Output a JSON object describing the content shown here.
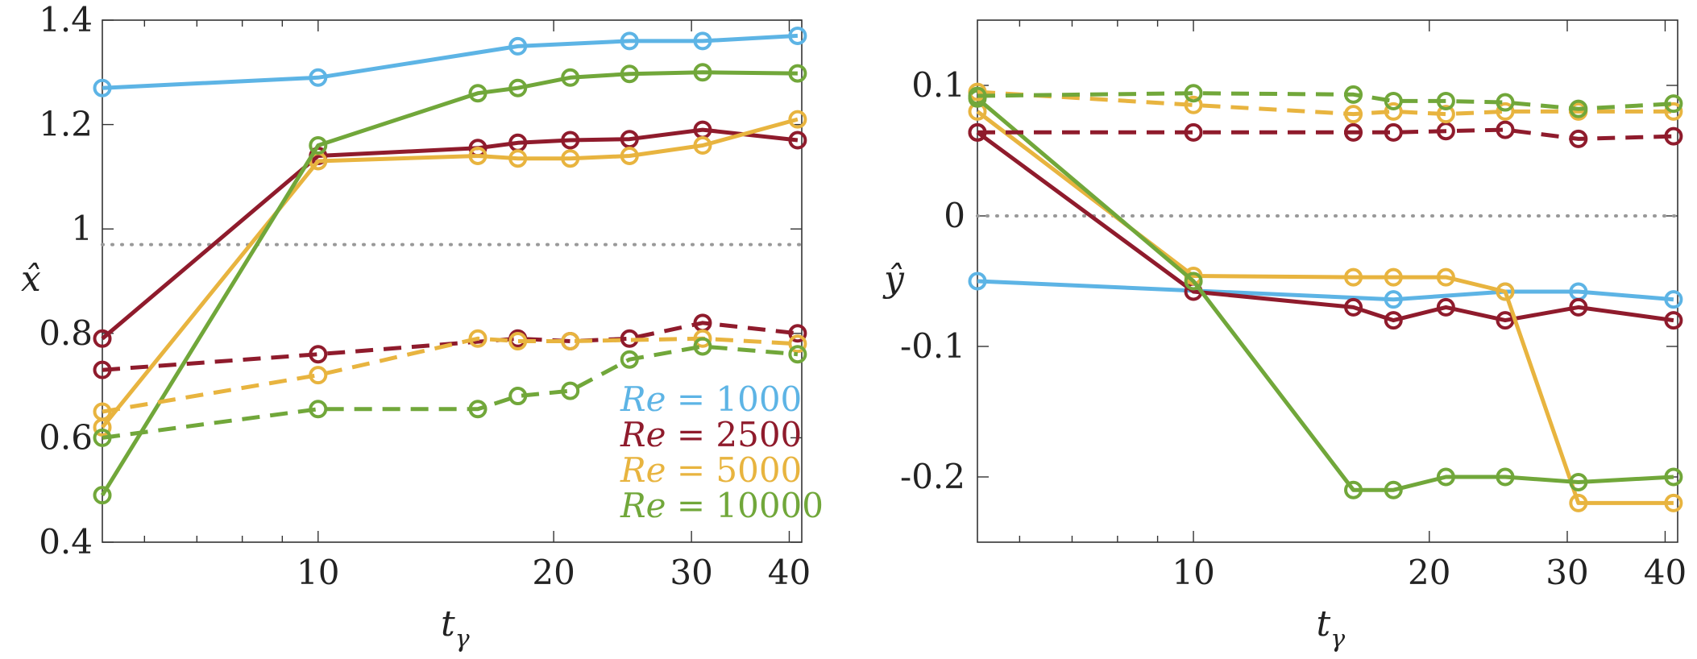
{
  "colors": {
    "re1000": "#5DB4E5",
    "re2500": "#8F1B2C",
    "re5000": "#E8B43F",
    "re10000": "#71A73A",
    "reference": "#999999",
    "axis": "#333333"
  },
  "chart_data": [
    {
      "type": "line",
      "id": "left",
      "ylabel": "x̂",
      "xlabel": "t",
      "xlabel_sub": "γ",
      "xscale": "log",
      "xlim": [
        5.3,
        41.5
      ],
      "ylim": [
        0.4,
        1.4
      ],
      "xticks": [
        10,
        20,
        30,
        40
      ],
      "xtick_labels": [
        "10",
        "20",
        "30",
        "40"
      ],
      "yticks": [
        0.4,
        0.6,
        0.8,
        1,
        1.2,
        1.4
      ],
      "ytick_labels": [
        "0.4",
        "0.6",
        "0.8",
        "1",
        "1.2",
        "1.4"
      ],
      "reference_line": 0.97,
      "legend": {
        "position": "bottom-right",
        "entries": [
          {
            "key": "re1000",
            "label_var": "Re",
            "label_eq": "= 1000"
          },
          {
            "key": "re2500",
            "label_var": "Re",
            "label_eq": "= 2500"
          },
          {
            "key": "re5000",
            "label_var": "Re",
            "label_eq": "= 5000"
          },
          {
            "key": "re10000",
            "label_var": "Re",
            "label_eq": "= 10000"
          }
        ]
      },
      "series": [
        {
          "name": "Re = 1000",
          "key": "re1000",
          "style": "solid",
          "x": [
            5.3,
            10,
            18,
            25,
            31,
            41
          ],
          "y": [
            1.27,
            1.29,
            1.35,
            1.36,
            1.36,
            1.37
          ]
        },
        {
          "name": "Re = 2500",
          "key": "re2500",
          "style": "solid",
          "x": [
            5.3,
            10,
            16,
            18,
            21,
            25,
            31,
            41
          ],
          "y": [
            0.79,
            1.14,
            1.155,
            1.165,
            1.17,
            1.172,
            1.19,
            1.17
          ]
        },
        {
          "name": "Re = 5000",
          "key": "re5000",
          "style": "solid",
          "x": [
            5.3,
            10,
            16,
            18,
            21,
            25,
            31,
            41
          ],
          "y": [
            0.62,
            1.13,
            1.14,
            1.135,
            1.135,
            1.14,
            1.16,
            1.21
          ]
        },
        {
          "name": "Re = 10000",
          "key": "re10000",
          "style": "solid",
          "x": [
            5.3,
            10,
            16,
            18,
            21,
            25,
            31,
            41
          ],
          "y": [
            0.49,
            1.16,
            1.26,
            1.27,
            1.29,
            1.297,
            1.3,
            1.298
          ]
        },
        {
          "name": "Re = 2500",
          "key": "re2500",
          "style": "dashed",
          "x": [
            5.3,
            10,
            18,
            21,
            25,
            31,
            41
          ],
          "y": [
            0.73,
            0.76,
            0.79,
            0.785,
            0.79,
            0.82,
            0.8
          ]
        },
        {
          "name": "Re = 5000",
          "key": "re5000",
          "style": "dashed",
          "x": [
            5.3,
            10,
            16,
            18,
            21,
            31,
            41
          ],
          "y": [
            0.65,
            0.72,
            0.79,
            0.785,
            0.785,
            0.79,
            0.78
          ]
        },
        {
          "name": "Re = 10000",
          "key": "re10000",
          "style": "dashed",
          "x": [
            5.3,
            10,
            16,
            18,
            21,
            25,
            31,
            41
          ],
          "y": [
            0.6,
            0.655,
            0.655,
            0.68,
            0.69,
            0.75,
            0.775,
            0.76
          ]
        }
      ]
    },
    {
      "type": "line",
      "id": "right",
      "ylabel": "ŷ",
      "xlabel": "t",
      "xlabel_sub": "γ",
      "xscale": "log",
      "xlim": [
        5.3,
        41.5
      ],
      "ylim": [
        -0.25,
        0.15
      ],
      "xticks": [
        10,
        20,
        30,
        40
      ],
      "xtick_labels": [
        "10",
        "20",
        "30",
        "40"
      ],
      "yticks": [
        -0.2,
        -0.1,
        0,
        0.1
      ],
      "ytick_labels": [
        "-0.2",
        "-0.1",
        "0",
        "0.1"
      ],
      "reference_line": 0,
      "series": [
        {
          "name": "Re = 1000",
          "key": "re1000",
          "style": "solid",
          "x": [
            5.3,
            18,
            25,
            31,
            41
          ],
          "y": [
            -0.05,
            -0.064,
            -0.058,
            -0.058,
            -0.064
          ]
        },
        {
          "name": "Re = 2500",
          "key": "re2500",
          "style": "solid",
          "x": [
            5.3,
            10,
            16,
            18,
            21,
            25,
            31,
            41
          ],
          "y": [
            0.064,
            -0.058,
            -0.07,
            -0.08,
            -0.07,
            -0.08,
            -0.07,
            -0.08
          ]
        },
        {
          "name": "Re = 5000",
          "key": "re5000",
          "style": "solid",
          "x": [
            5.3,
            10,
            16,
            18,
            21,
            25,
            31,
            41
          ],
          "y": [
            0.08,
            -0.046,
            -0.047,
            -0.047,
            -0.047,
            -0.058,
            -0.22,
            -0.22
          ]
        },
        {
          "name": "Re = 10000",
          "key": "re10000",
          "style": "solid",
          "x": [
            5.3,
            10,
            16,
            18,
            21,
            25,
            31,
            41
          ],
          "y": [
            0.09,
            -0.05,
            -0.21,
            -0.21,
            -0.2,
            -0.2,
            -0.204,
            -0.2
          ]
        },
        {
          "name": "Re = 2500",
          "key": "re2500",
          "style": "dashed",
          "x": [
            5.3,
            10,
            16,
            18,
            21,
            25,
            31,
            41
          ],
          "y": [
            0.064,
            0.064,
            0.064,
            0.064,
            0.065,
            0.066,
            0.059,
            0.061
          ]
        },
        {
          "name": "Re = 5000",
          "key": "re5000",
          "style": "dashed",
          "x": [
            5.3,
            10,
            16,
            18,
            21,
            25,
            31,
            41
          ],
          "y": [
            0.095,
            0.085,
            0.078,
            0.08,
            0.078,
            0.08,
            0.08,
            0.08
          ]
        },
        {
          "name": "Re = 10000",
          "key": "re10000",
          "style": "dashed",
          "x": [
            5.3,
            10,
            16,
            18,
            21,
            25,
            31,
            41
          ],
          "y": [
            0.092,
            0.094,
            0.093,
            0.088,
            0.088,
            0.087,
            0.082,
            0.086
          ]
        }
      ]
    }
  ]
}
